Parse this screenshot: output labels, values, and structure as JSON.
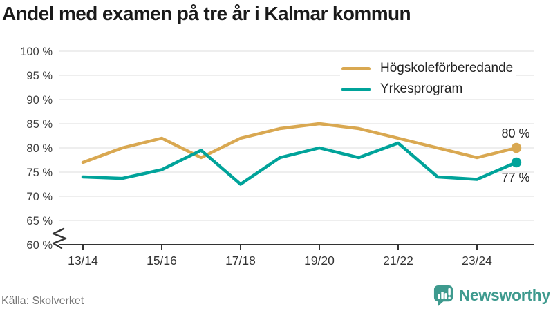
{
  "title": "Andel med examen på tre år i Kalmar kommun",
  "source": "Källa: Skolverket",
  "brand": {
    "name": "Newsworthy"
  },
  "colors": {
    "hogskoleforberedande": "#D9A851",
    "yrkesprogram": "#00A39A",
    "grid": "#E3E3E3",
    "axis": "#333333",
    "tick_label": "#3D3D3D",
    "title": "#1A1A1A",
    "source_text": "#757575",
    "brand_teal": "#3E9A8E",
    "end_label": "#222222"
  },
  "chart_data": {
    "type": "line",
    "title": "Andel med examen på tre år i Kalmar kommun",
    "x": [
      "13/14",
      "14/15",
      "15/16",
      "16/17",
      "17/18",
      "18/19",
      "19/20",
      "20/21",
      "21/22",
      "22/23",
      "23/24",
      "24/25"
    ],
    "x_tick_labels": [
      "13/14",
      "15/16",
      "17/18",
      "19/20",
      "21/22",
      "23/24"
    ],
    "x_tick_indices": [
      0,
      2,
      4,
      6,
      8,
      10
    ],
    "series": [
      {
        "name": "Högskoleförberedande",
        "color": "#D9A851",
        "values": [
          77,
          80,
          82,
          78,
          82,
          84,
          85,
          84,
          82,
          80,
          78,
          80
        ],
        "end_label": "80 %"
      },
      {
        "name": "Yrkesprogram",
        "color": "#00A39A",
        "values": [
          74,
          73.7,
          75.5,
          79.5,
          72.5,
          78,
          80,
          78,
          81,
          74,
          73.5,
          77
        ],
        "end_label": "77 %"
      }
    ],
    "y_ticks": [
      60,
      65,
      70,
      75,
      80,
      85,
      90,
      95,
      100
    ],
    "y_tick_suffix": " %",
    "ylim": [
      60,
      100
    ],
    "axis_break": true,
    "grid": true,
    "legend_position": "top-right",
    "unit": "%",
    "source": "Källa: Skolverket"
  }
}
